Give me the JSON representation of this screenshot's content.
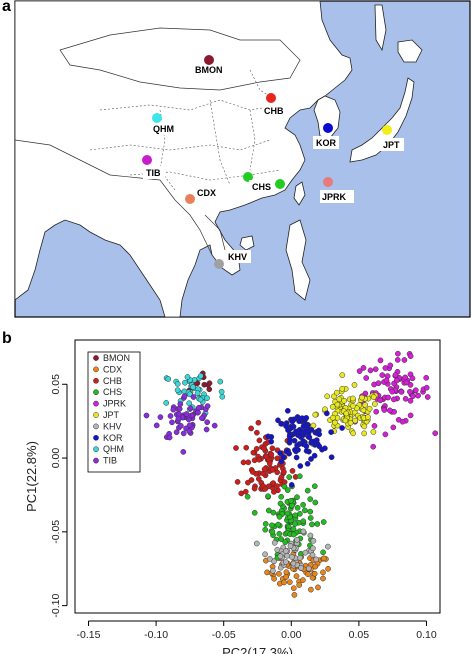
{
  "panels": {
    "a_letter": "a",
    "b_letter": "b"
  },
  "map": {
    "colors": {
      "sea": "#a9c1ea",
      "land": "#ffffff",
      "border": "#222222"
    },
    "populations": [
      {
        "code": "BMON",
        "color": "#8b1a2e"
      },
      {
        "code": "CHB",
        "color": "#e8261c"
      },
      {
        "code": "QHM",
        "color": "#3ee6ea"
      },
      {
        "code": "KOR",
        "color": "#0a0ad0"
      },
      {
        "code": "JPT",
        "color": "#f2ee1a"
      },
      {
        "code": "TIB",
        "color": "#c81ec8"
      },
      {
        "code": "CDX",
        "color": "#e8805c"
      },
      {
        "code": "CHS",
        "color": "#22cc22"
      },
      {
        "code": "JPRK",
        "color": "#e87a7a"
      },
      {
        "code": "KHV",
        "color": "#a0a0a0"
      }
    ]
  },
  "chart_data": {
    "type": "scatter",
    "xlabel": "PC2(17.3%)",
    "ylabel": "PC1(22.8%)",
    "xlim": [
      -0.16,
      0.11
    ],
    "ylim": [
      -0.105,
      0.08
    ],
    "xticks": [
      "-0.15",
      "-0.10",
      "-0.05",
      "0.00",
      "0.05",
      "0.10"
    ],
    "xtick_values": [
      -0.15,
      -0.1,
      -0.05,
      0.0,
      0.05,
      0.1
    ],
    "yticks": [
      "0.05",
      "0.00",
      "-0.05",
      "-0.10"
    ],
    "ytick_values": [
      0.05,
      0.0,
      -0.05,
      -0.1
    ],
    "legend_position": "top-left",
    "series": [
      {
        "name": "BMON",
        "color": "#8b1a2e",
        "n": 10,
        "center": [
          -0.063,
          0.049
        ],
        "spread": [
          0.006,
          0.006
        ]
      },
      {
        "name": "CDX",
        "color": "#e8861c",
        "n": 60,
        "center": [
          0.006,
          -0.077
        ],
        "spread": [
          0.012,
          0.006
        ]
      },
      {
        "name": "CHB",
        "color": "#d11c1c",
        "n": 90,
        "center": [
          -0.018,
          -0.006
        ],
        "spread": [
          0.01,
          0.012
        ]
      },
      {
        "name": "CHS",
        "color": "#22bb22",
        "n": 100,
        "center": [
          -0.001,
          -0.04
        ],
        "spread": [
          0.009,
          0.012
        ]
      },
      {
        "name": "JPRK",
        "color": "#d61ed6",
        "n": 90,
        "center": [
          0.075,
          0.045
        ],
        "spread": [
          0.014,
          0.011
        ]
      },
      {
        "name": "JPT",
        "color": "#e8e81c",
        "n": 100,
        "center": [
          0.043,
          0.03
        ],
        "spread": [
          0.012,
          0.008
        ]
      },
      {
        "name": "KHV",
        "color": "#b5b5b5",
        "n": 50,
        "center": [
          0.003,
          -0.064
        ],
        "spread": [
          0.01,
          0.006
        ]
      },
      {
        "name": "KOR",
        "color": "#1414c8",
        "n": 100,
        "center": [
          0.006,
          0.014
        ],
        "spread": [
          0.01,
          0.008
        ]
      },
      {
        "name": "QHM",
        "color": "#38d8d8",
        "n": 40,
        "center": [
          -0.072,
          0.045
        ],
        "spread": [
          0.012,
          0.008
        ]
      },
      {
        "name": "TIB",
        "color": "#8a2be2",
        "n": 60,
        "center": [
          -0.078,
          0.027
        ],
        "spread": [
          0.01,
          0.008
        ]
      }
    ]
  }
}
